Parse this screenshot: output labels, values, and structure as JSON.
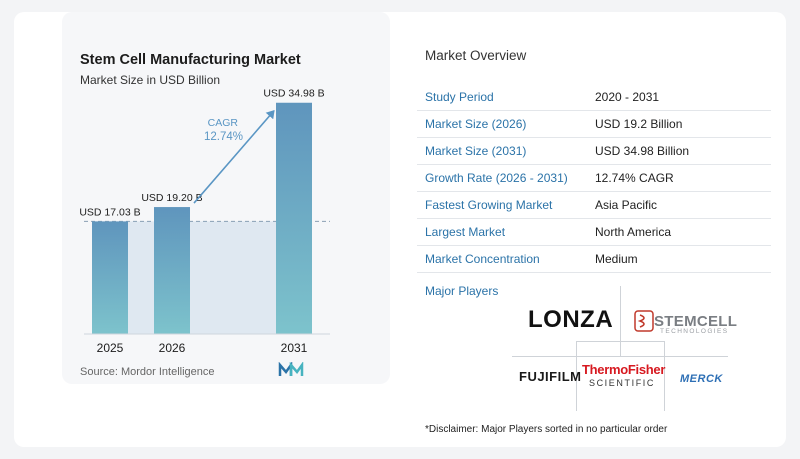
{
  "chart_data": {
    "type": "bar",
    "title": "Stem Cell Manufacturing Market",
    "subtitle": "Market Size in USD Billion",
    "categories": [
      "2025",
      "2026",
      "2031"
    ],
    "values": [
      17.03,
      19.2,
      34.98
    ],
    "data_labels": [
      "USD 17.03 B",
      "USD 19.20 B",
      "USD 34.98 B"
    ],
    "ylim": [
      0,
      36
    ],
    "cagr_label": "CAGR",
    "cagr_value": "12.74%",
    "source": "Source:  Mordor Intelligence",
    "colors": {
      "bar_top": "#5f95bd",
      "bar_bottom": "#7dc3cc",
      "band": "#dfe8f1",
      "arrow": "#5a96c4",
      "cagr_text": "#5a96c4"
    }
  },
  "overview": {
    "title": "Market Overview",
    "rows": [
      {
        "label": "Study Period",
        "value": "2020 - 2031"
      },
      {
        "label": "Market Size (2026)",
        "value": "USD 19.2 Billion"
      },
      {
        "label": "Market Size (2031)",
        "value": "USD 34.98 Billion"
      },
      {
        "label": "Growth Rate (2026 - 2031)",
        "value": "12.74% CAGR"
      },
      {
        "label": "Fastest Growing Market",
        "value": "Asia Pacific"
      },
      {
        "label": "Largest Market",
        "value": "North America"
      },
      {
        "label": "Market Concentration",
        "value": "Medium"
      }
    ]
  },
  "players": {
    "title": "Major Players",
    "lonza": "LONZA",
    "stemcell": "STEMCELL",
    "stemcell_sub": "TECHNOLOGIES",
    "fujifilm": "FUJIFILM",
    "thermo_name": "ThermoFisher",
    "thermo_sub": "SCIENTIFIC",
    "merck": "MERCK"
  },
  "disclaimer": "*Disclaimer: Major Players sorted in no particular order"
}
